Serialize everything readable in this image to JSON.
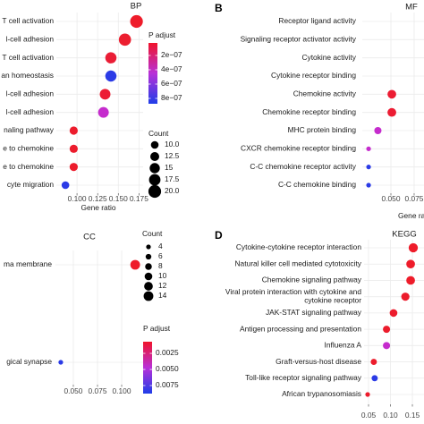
{
  "chart_data": [
    {
      "type": "scatter",
      "title": "BP",
      "categories": [
        "T cell activation",
        "l-cell adhesion",
        "T cell activation",
        "an homeostasis",
        "l-cell adhesion",
        "l-cell adhesion",
        "naling pathway",
        "e to chemokine",
        "e to chemokine",
        "cyte migration"
      ],
      "x": [
        0.172,
        0.158,
        0.141,
        0.141,
        0.134,
        0.132,
        0.096,
        0.096,
        0.096,
        0.086
      ],
      "counts": [
        20,
        19,
        17,
        17,
        16,
        16,
        11,
        11,
        11,
        10
      ],
      "colors": [
        "#ee1c2a",
        "#ec1f30",
        "#ea1d35",
        "#2b3be6",
        "#ec1c33",
        "#c52ccd",
        "#ec1c2c",
        "#ec1c2c",
        "#ec1c2c",
        "#2b3be6"
      ],
      "xlim": [
        0.075,
        0.18
      ],
      "xticks": [
        {
          "value": 0.1,
          "label": "0.100"
        },
        {
          "value": 0.125,
          "label": "0.125"
        },
        {
          "value": 0.15,
          "label": "0.150"
        },
        {
          "value": 0.175,
          "label": "0.175"
        }
      ],
      "x_label": "Gene ratio",
      "grid": true,
      "size_legend": {
        "title": "Count",
        "ticks": [
          {
            "value": 10,
            "label": "10.0"
          },
          12.5,
          15,
          17.5,
          {
            "value": 20,
            "label": "20.0"
          }
        ]
      },
      "color_legend": {
        "title": "P adjust",
        "lim": [
          2.5e-08,
          8.75e-07
        ],
        "colors": [
          "#f0142b",
          "#b830d8",
          "#1f3de8"
        ],
        "ticks": [
          {
            "value": 2e-07,
            "label": "2e−07"
          },
          {
            "value": 4e-07,
            "label": "4e−07"
          },
          {
            "value": 6e-07,
            "label": "6e−07"
          },
          {
            "value": 8e-07,
            "label": "8e−07"
          }
        ]
      }
    },
    {
      "type": "scatter",
      "panel_label": "B",
      "title": "MF",
      "categories": [
        "Receptor ligand activity",
        "Signaling receptor activator activity",
        "Cytokine activity",
        "Cytokine receptor binding",
        "Chemokine activity",
        "Chemokine receptor binding",
        "MHC protein binding",
        "CXCR chemokine receptor binding",
        "C-C chemokine receptor activity",
        "C-C chemokine binding"
      ],
      "x": [
        null,
        null,
        null,
        null,
        0.051,
        0.051,
        0.036,
        0.026,
        0.026,
        0.026
      ],
      "counts": [
        null,
        null,
        null,
        null,
        12,
        12,
        9,
        4,
        4,
        4
      ],
      "colors": [
        null,
        null,
        null,
        null,
        "#ec1c33",
        "#ec1c33",
        "#c52ccd",
        "#c52ccd",
        "#2b3be6",
        "#2b3be6"
      ],
      "xlim": [
        0.0192,
        0.0856
      ],
      "xticks": [
        {
          "value": 0.05,
          "label": "0.050"
        },
        {
          "value": 0.075,
          "label": "0.075"
        }
      ],
      "x_label": "Gene ratio",
      "grid": true
    },
    {
      "type": "scatter",
      "title": "CC",
      "categories": [
        "ma membrane",
        "gical synapse"
      ],
      "x": [
        0.114,
        0.037
      ],
      "counts": [
        14,
        4
      ],
      "colors": [
        "#ee1c2a",
        "#2b3be6"
      ],
      "xlim": [
        0.0315,
        0.1222
      ],
      "xticks": [
        {
          "value": 0.05,
          "label": "0.050"
        },
        {
          "value": 0.075,
          "label": "0.075"
        },
        {
          "value": 0.1,
          "label": "0.100"
        }
      ],
      "grid": true,
      "size_legend": {
        "title": "Count",
        "ticks": [
          4,
          6,
          8,
          10,
          12,
          14
        ]
      },
      "color_legend": {
        "title": "P adjust",
        "lim": [
          0.00069,
          0.00875
        ],
        "colors": [
          "#f0142b",
          "#b830d8",
          "#1f3de8"
        ],
        "ticks": [
          {
            "value": 0.0025,
            "label": "0.0025"
          },
          {
            "value": 0.005,
            "label": "0.0050"
          },
          {
            "value": 0.0075,
            "label": "0.0075"
          }
        ]
      }
    },
    {
      "type": "scatter",
      "panel_label": "D",
      "title": "KEGG",
      "categories": [
        "Cytokine-cytokine receptor interaction",
        "Natural killer cell mediated cytotoxicity",
        "Chemokine signaling pathway",
        "Viral protein interaction with cytokine and\ncytokine receptor",
        "JAK-STAT signaling pathway",
        "Antigen processing and presentation",
        "Influenza A",
        "Graft-versus-host disease",
        "Toll-like receptor signaling pathway",
        "African trypanosomiasis"
      ],
      "x": [
        0.152,
        0.146,
        0.146,
        0.134,
        0.107,
        0.091,
        0.091,
        0.062,
        0.064,
        0.048
      ],
      "counts": [
        13,
        12,
        12,
        11,
        10,
        9,
        9,
        7,
        7,
        4
      ],
      "colors": [
        "#ee1c2a",
        "#ee1c2a",
        "#ee1c2a",
        "#ec1c2c",
        "#ec1c2c",
        "#ec1c2c",
        "#c52ccd",
        "#ec1c2c",
        "#2b3be6",
        "#ec1c2c"
      ],
      "xlim": [
        0.0398,
        0.1765
      ],
      "xticks": [
        0.05,
        {
          "value": 0.1,
          "label": "0.10"
        },
        0.15
      ],
      "grid": true
    }
  ]
}
